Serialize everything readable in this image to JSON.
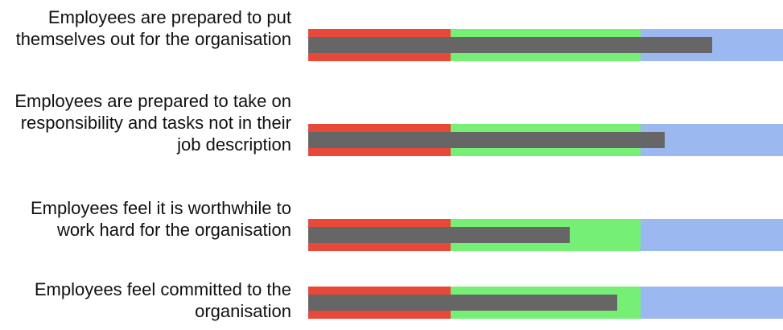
{
  "chart_data": {
    "type": "bullet",
    "xlim": [
      0,
      100
    ],
    "band_ranges": [
      {
        "from": 0,
        "to": 30,
        "color": "#e8483a"
      },
      {
        "from": 30,
        "to": 70,
        "color": "#75f075"
      },
      {
        "from": 70,
        "to": 100,
        "color": "#9cb8f0"
      }
    ],
    "measure_color": "#666666",
    "categories": [
      {
        "label": "Employees are prepared to put themselves out for the organisation",
        "value": 85
      },
      {
        "label": "Employees are prepared to take on responsibility and tasks not in their job description",
        "value": 75
      },
      {
        "label": "Employees feel it is worthwhile to work hard for the organisation",
        "value": 55
      },
      {
        "label": "Employees feel committed to the organisation",
        "value": 65
      }
    ]
  }
}
